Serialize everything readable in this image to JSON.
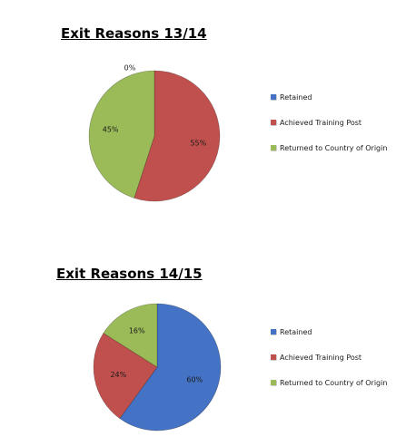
{
  "colors": {
    "retained": "#4472C4",
    "achieved": "#C0504D",
    "returned": "#9BBB59"
  },
  "chart_data": [
    {
      "type": "pie",
      "title": "Exit Reasons 13/14",
      "categories": [
        "Retained",
        "Achieved Training Post",
        "Returned to Country of Origin"
      ],
      "values": [
        0,
        55,
        45
      ],
      "labels": [
        "0%",
        "55%",
        "45%"
      ],
      "legend_position": "right"
    },
    {
      "type": "pie",
      "title": "Exit Reasons 14/15",
      "categories": [
        "Retained",
        "Achieved Training Post",
        "Returned to Country of Origin"
      ],
      "values": [
        60,
        24,
        16
      ],
      "labels": [
        "60%",
        "24%",
        "16%"
      ],
      "legend_position": "right"
    }
  ]
}
